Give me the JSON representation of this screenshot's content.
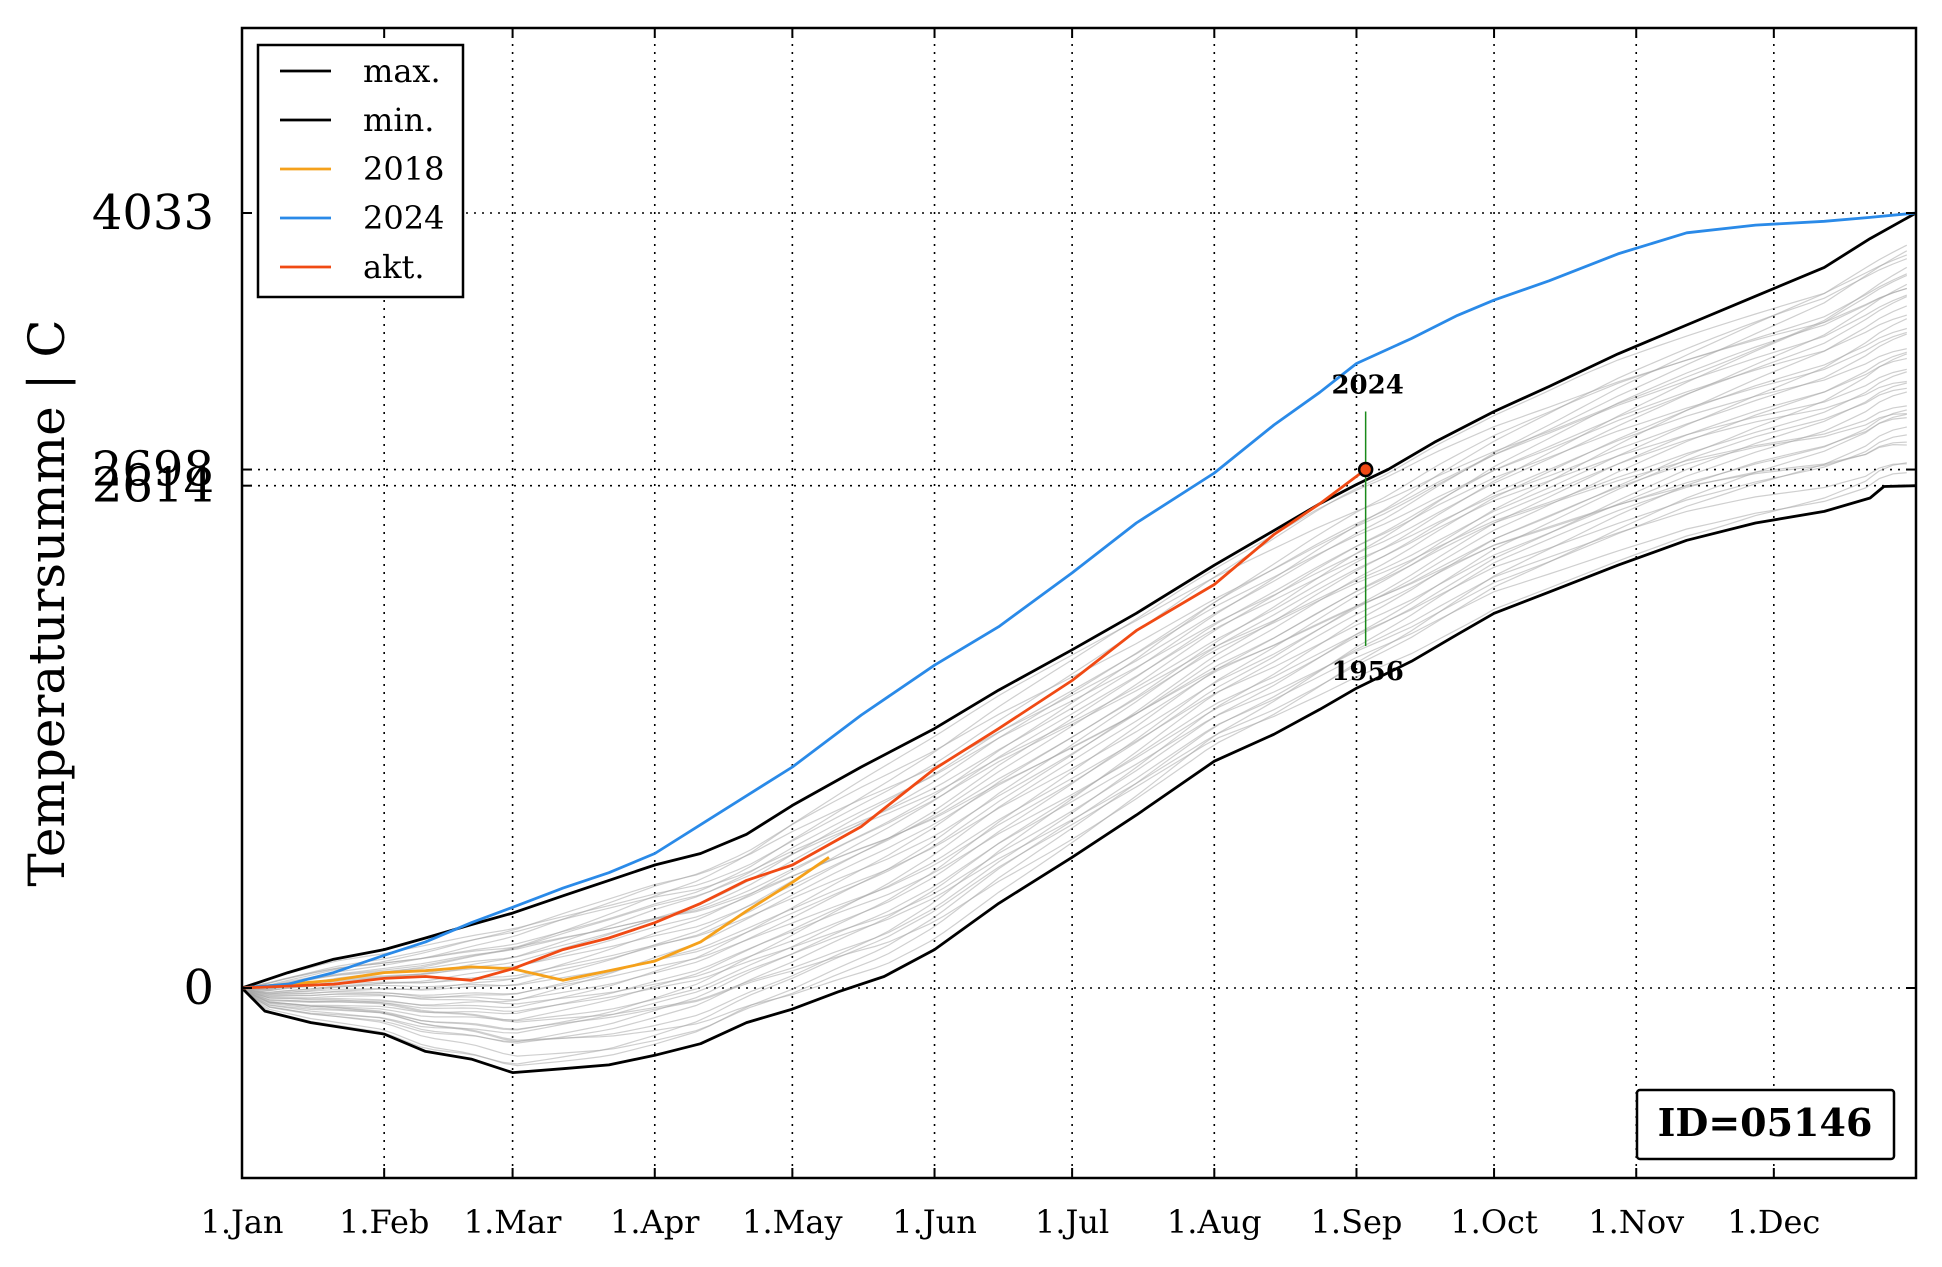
{
  "chart_data": {
    "type": "line",
    "ylabel": "Temperatursumme | C",
    "x_tick_labels": [
      "1.Jan",
      "1.Feb",
      "1.Mar",
      "1.Apr",
      "1.May",
      "1.Jun",
      "1.Jul",
      "1.Aug",
      "1.Sep",
      "1.Oct",
      "1.Nov",
      "1.Dec"
    ],
    "x_tick_days": [
      0,
      31,
      59,
      90,
      120,
      151,
      181,
      212,
      243,
      273,
      304,
      334
    ],
    "xlim": [
      0,
      365
    ],
    "ylim": [
      -1000,
      5000
    ],
    "y_tick_labels": [
      {
        "value": 0,
        "label": "0"
      },
      {
        "value": 2614,
        "label": "2614"
      },
      {
        "value": 2698,
        "label": "2698"
      },
      {
        "value": 4033,
        "label": "4033"
      }
    ],
    "grid": true,
    "legend_position": "top-left",
    "legend": [
      {
        "label": "max.",
        "color": "#000000"
      },
      {
        "label": "min.",
        "color": "#000000"
      },
      {
        "label": "2018",
        "color": "#f5a11b"
      },
      {
        "label": "2024",
        "color": "#2a8ae8"
      },
      {
        "label": "akt.",
        "color": "#f04a14"
      }
    ],
    "series": [
      {
        "name": "max.",
        "color": "#000000",
        "x": [
          0,
          10,
          20,
          31,
          40,
          50,
          59,
          70,
          80,
          90,
          100,
          110,
          120,
          135,
          151,
          165,
          181,
          195,
          212,
          225,
          235,
          243,
          250,
          260,
          273,
          285,
          300,
          315,
          330,
          345,
          355,
          365
        ],
        "y": [
          0,
          80,
          150,
          200,
          260,
          330,
          390,
          480,
          560,
          640,
          700,
          800,
          950,
          1150,
          1350,
          1550,
          1760,
          1950,
          2200,
          2380,
          2520,
          2620,
          2700,
          2840,
          3000,
          3130,
          3300,
          3450,
          3600,
          3750,
          3900,
          4033
        ]
      },
      {
        "name": "min.",
        "color": "#000000",
        "x": [
          0,
          5,
          15,
          31,
          40,
          50,
          59,
          70,
          80,
          90,
          100,
          110,
          120,
          130,
          140,
          151,
          165,
          181,
          195,
          212,
          225,
          235,
          243,
          255,
          265,
          273,
          285,
          300,
          315,
          330,
          345,
          355,
          358,
          365
        ],
        "y": [
          0,
          -120,
          -180,
          -240,
          -330,
          -370,
          -440,
          -420,
          -400,
          -350,
          -290,
          -180,
          -110,
          -20,
          60,
          200,
          440,
          680,
          900,
          1180,
          1320,
          1450,
          1560,
          1700,
          1840,
          1950,
          2060,
          2200,
          2330,
          2420,
          2480,
          2550,
          2610,
          2614
        ]
      },
      {
        "name": "2018",
        "color": "#f5a11b",
        "x": [
          0,
          10,
          20,
          31,
          40,
          50,
          59,
          70,
          80,
          90,
          100,
          110,
          120,
          128
        ],
        "y": [
          0,
          20,
          40,
          80,
          90,
          110,
          100,
          40,
          90,
          140,
          240,
          400,
          550,
          680
        ]
      },
      {
        "name": "2024",
        "color": "#2a8ae8",
        "x": [
          0,
          10,
          20,
          31,
          40,
          50,
          59,
          70,
          80,
          90,
          100,
          110,
          120,
          135,
          151,
          165,
          181,
          195,
          212,
          225,
          235,
          243,
          255,
          265,
          273,
          285,
          300,
          315,
          330,
          345,
          355,
          365
        ],
        "y": [
          0,
          20,
          80,
          170,
          240,
          340,
          420,
          520,
          600,
          700,
          850,
          1000,
          1150,
          1420,
          1680,
          1880,
          2160,
          2420,
          2680,
          2930,
          3100,
          3250,
          3380,
          3500,
          3580,
          3680,
          3820,
          3930,
          3970,
          3990,
          4010,
          4033
        ]
      },
      {
        "name": "akt.",
        "color": "#f04a14",
        "x": [
          0,
          10,
          20,
          31,
          40,
          50,
          59,
          70,
          80,
          90,
          100,
          110,
          120,
          135,
          151,
          165,
          181,
          195,
          212,
          225,
          235,
          245
        ],
        "y": [
          0,
          10,
          20,
          50,
          60,
          40,
          100,
          200,
          260,
          340,
          440,
          560,
          640,
          840,
          1140,
          1350,
          1600,
          1860,
          2100,
          2360,
          2520,
          2698
        ]
      }
    ],
    "gray_years_count": 40,
    "marker": {
      "x": 245,
      "y": 2698,
      "label_top": "2024",
      "label_bottom": "1956",
      "top_y": 3000,
      "bottom_y": 1780
    },
    "id_box": "ID=05146"
  }
}
